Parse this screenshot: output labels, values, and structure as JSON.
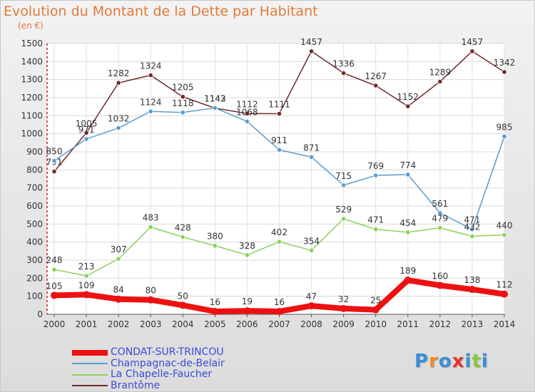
{
  "title": "Evolution du Montant de la Dette par Habitant",
  "subtitle": "(en €)",
  "logo": {
    "text": "Proxiti",
    "letters": [
      "P",
      "r",
      "o",
      "x",
      "i",
      "t",
      "i"
    ],
    "colors": [
      "#3a8fd6",
      "#f08a24",
      "#3a8fd6",
      "#e8332a",
      "#3a8fd6",
      "#8cc63f",
      "#3a8fd6"
    ]
  },
  "chart_data": {
    "type": "line",
    "title": "Evolution du Montant de la Dette par Habitant",
    "subtitle": "(en €)",
    "x": [
      "2000",
      "2001",
      "2002",
      "2003",
      "2004",
      "2005",
      "2006",
      "2007",
      "2008",
      "2009",
      "2010",
      "2011",
      "2012",
      "2013",
      "2014"
    ],
    "ylim": [
      0,
      1500
    ],
    "yticks": [
      0,
      100,
      200,
      300,
      400,
      500,
      600,
      700,
      800,
      900,
      1000,
      1100,
      1200,
      1300,
      1400,
      1500
    ],
    "grid": true,
    "legend_position": "bottom-left",
    "series": [
      {
        "name": "Brantôme",
        "color": "#6e2a2a",
        "values": [
          791,
          1005,
          1282,
          1324,
          1205,
          1142,
          1112,
          1111,
          1457,
          1336,
          1267,
          1152,
          1289,
          1457,
          1342
        ]
      },
      {
        "name": "Champagnac-de-Belair",
        "color": "#5b9bd0",
        "values": [
          850,
          971,
          1032,
          1124,
          1118,
          1143,
          1068,
          911,
          871,
          715,
          769,
          774,
          561,
          471,
          985
        ]
      },
      {
        "name": "La Chapelle-Faucher",
        "color": "#8ccf5a",
        "values": [
          248,
          213,
          307,
          483,
          428,
          380,
          328,
          402,
          354,
          529,
          471,
          454,
          479,
          432,
          440
        ]
      },
      {
        "name": "CONDAT-SUR-TRINCOU",
        "color": "#ee1111",
        "values": [
          105,
          109,
          84,
          80,
          50,
          16,
          19,
          16,
          47,
          32,
          25,
          189,
          160,
          138,
          112
        ]
      }
    ],
    "legend_order": [
      "CONDAT-SUR-TRINCOU",
      "Champagnac-de-Belair",
      "La Chapelle-Faucher",
      "Brantôme"
    ],
    "legend_text_color": "#3a4bd6"
  }
}
